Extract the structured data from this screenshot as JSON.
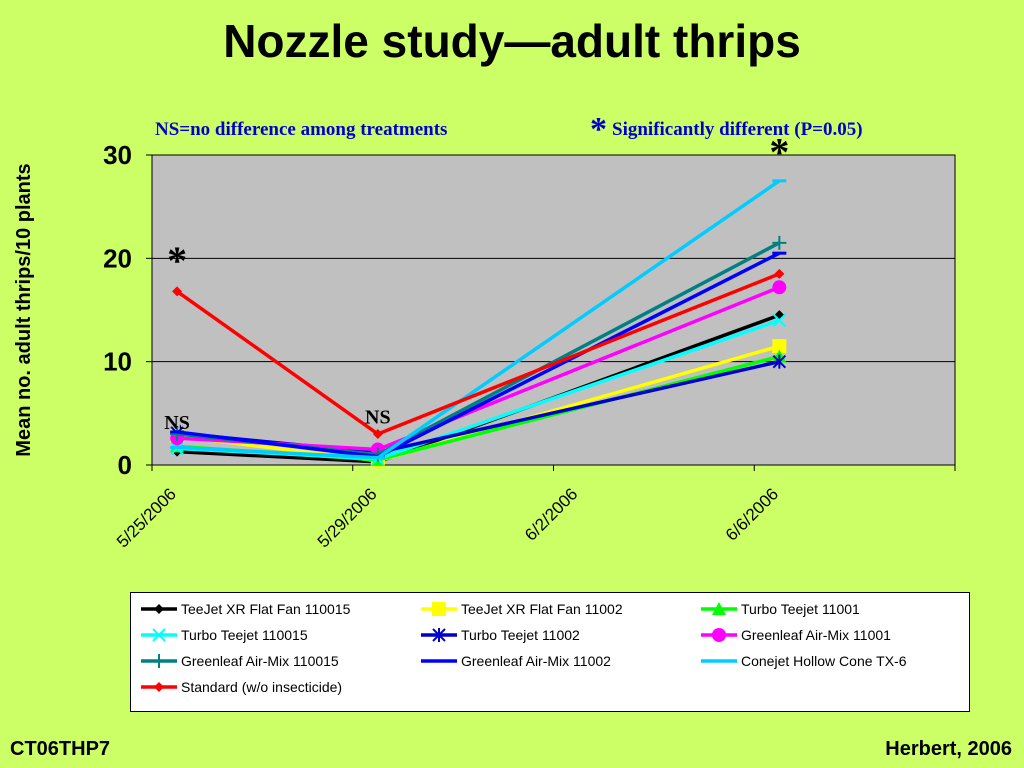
{
  "title": "Nozzle study—adult thrips",
  "footer": {
    "left": "CT06THP7",
    "right": "Herbert, 2006"
  },
  "chart_data": {
    "type": "line",
    "ylabel": "Mean no. adult thrips/10 plants",
    "ylim": [
      0,
      30
    ],
    "yticks": [
      "0",
      "10",
      "20",
      "30"
    ],
    "x": [
      "5/25/2006",
      "5/29/2006",
      "6/2/2006",
      "6/6/2006"
    ],
    "grid": "horizontal major",
    "legend": "bottom",
    "annotations": {
      "ns_note": "NS=no difference among treatments",
      "sig_star": "*",
      "sig_note": "Significantly different (P=0.05)",
      "point_labels": [
        {
          "text": "NS",
          "x": "5/25/2006",
          "y": 3.5
        },
        {
          "text": "NS",
          "x": "5/29/2006",
          "y": 4
        },
        {
          "text": "*",
          "x": "5/25/2006",
          "y": 18.5
        },
        {
          "text": "*",
          "x": "6/6/2006",
          "y": 29
        }
      ]
    },
    "series": [
      {
        "name": "TeeJet XR Flat Fan 110015",
        "color": "#000000",
        "marker": "diamond",
        "points": [
          [
            "5/25/2006",
            1.3
          ],
          [
            "5/29/2006",
            0.3
          ],
          [
            "6/6/2006",
            14.5
          ]
        ]
      },
      {
        "name": "TeeJet XR Flat Fan 11002",
        "color": "#ffff00",
        "marker": "square",
        "points": [
          [
            "5/25/2006",
            2.8
          ],
          [
            "5/29/2006",
            0.4
          ],
          [
            "6/6/2006",
            11.5
          ]
        ]
      },
      {
        "name": "Turbo Teejet 11001",
        "color": "#00ff00",
        "marker": "triangle",
        "points": [
          [
            "5/25/2006",
            1.8
          ],
          [
            "5/29/2006",
            0.5
          ],
          [
            "6/6/2006",
            10.5
          ]
        ]
      },
      {
        "name": "Turbo Teejet 110015",
        "color": "#00ffff",
        "marker": "x",
        "points": [
          [
            "5/25/2006",
            1.6
          ],
          [
            "5/29/2006",
            0.6
          ],
          [
            "6/6/2006",
            14.0
          ]
        ]
      },
      {
        "name": "Turbo Teejet 11002",
        "color": "#0000cc",
        "marker": "asterisk",
        "points": [
          [
            "5/25/2006",
            3.1
          ],
          [
            "5/29/2006",
            1.2
          ],
          [
            "6/6/2006",
            10.0
          ]
        ]
      },
      {
        "name": "Greenleaf Air-Mix 11001",
        "color": "#ff00ff",
        "marker": "circle",
        "points": [
          [
            "5/25/2006",
            2.6
          ],
          [
            "5/29/2006",
            1.5
          ],
          [
            "6/6/2006",
            17.2
          ]
        ]
      },
      {
        "name": "Greenleaf Air-Mix 110015",
        "color": "#008080",
        "marker": "plus",
        "points": [
          [
            "5/25/2006",
            3.0
          ],
          [
            "5/29/2006",
            1.0
          ],
          [
            "6/6/2006",
            21.5
          ]
        ]
      },
      {
        "name": "Greenleaf Air-Mix 11002",
        "color": "#0000ff",
        "marker": "dash",
        "points": [
          [
            "5/25/2006",
            3.2
          ],
          [
            "5/29/2006",
            0.8
          ],
          [
            "6/6/2006",
            20.5
          ]
        ]
      },
      {
        "name": "Conejet Hollow Cone TX-6",
        "color": "#00ccff",
        "marker": "dash",
        "points": [
          [
            "5/25/2006",
            1.7
          ],
          [
            "5/29/2006",
            0.7
          ],
          [
            "6/6/2006",
            27.5
          ]
        ]
      },
      {
        "name": "Standard (w/o insecticide)",
        "color": "#ff0000",
        "marker": "diamond",
        "points": [
          [
            "5/25/2006",
            16.8
          ],
          [
            "5/29/2006",
            3.0
          ],
          [
            "6/6/2006",
            18.5
          ]
        ]
      }
    ]
  }
}
